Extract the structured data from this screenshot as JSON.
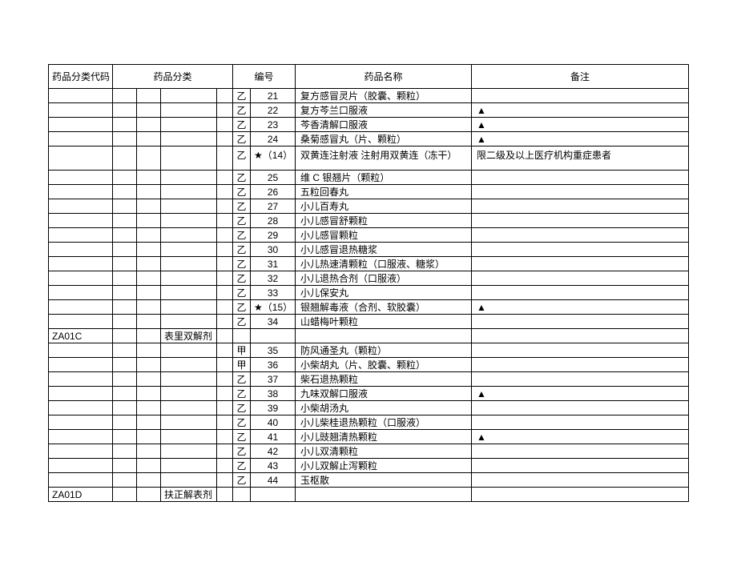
{
  "headers": {
    "code": "药品分类代码",
    "category": "药品分类",
    "number": "编号",
    "drug_name": "药品名称",
    "note": "备注"
  },
  "rows": [
    {
      "code": "",
      "cat3": "",
      "cls": "乙",
      "num": "21",
      "drug": "复方感冒灵片（胶囊、颗粒）",
      "note": ""
    },
    {
      "code": "",
      "cat3": "",
      "cls": "乙",
      "num": "22",
      "drug": "复方芩兰口服液",
      "note": "▲"
    },
    {
      "code": "",
      "cat3": "",
      "cls": "乙",
      "num": "23",
      "drug": "芩香清解口服液",
      "note": "▲"
    },
    {
      "code": "",
      "cat3": "",
      "cls": "乙",
      "num": "24",
      "drug": "桑菊感冒丸（片、颗粒）",
      "note": "▲"
    },
    {
      "code": "",
      "cat3": "",
      "cls": "乙",
      "num": "★（14）",
      "drug": "双黄连注射液 注射用双黄连（冻干）",
      "note": "限二级及以上医疗机构重症患者",
      "tall": true
    },
    {
      "code": "",
      "cat3": "",
      "cls": "乙",
      "num": "25",
      "drug": "维 C 银翘片（颗粒）",
      "note": ""
    },
    {
      "code": "",
      "cat3": "",
      "cls": "乙",
      "num": "26",
      "drug": "五粒回春丸",
      "note": ""
    },
    {
      "code": "",
      "cat3": "",
      "cls": "乙",
      "num": "27",
      "drug": "小儿百寿丸",
      "note": ""
    },
    {
      "code": "",
      "cat3": "",
      "cls": "乙",
      "num": "28",
      "drug": "小儿感冒舒颗粒",
      "note": ""
    },
    {
      "code": "",
      "cat3": "",
      "cls": "乙",
      "num": "29",
      "drug": "小儿感冒颗粒",
      "note": ""
    },
    {
      "code": "",
      "cat3": "",
      "cls": "乙",
      "num": "30",
      "drug": "小儿感冒退热糖浆",
      "note": ""
    },
    {
      "code": "",
      "cat3": "",
      "cls": "乙",
      "num": "31",
      "drug": "小儿热速清颗粒（口服液、糖浆）",
      "note": ""
    },
    {
      "code": "",
      "cat3": "",
      "cls": "乙",
      "num": "32",
      "drug": "小儿退热合剂（口服液）",
      "note": ""
    },
    {
      "code": "",
      "cat3": "",
      "cls": "乙",
      "num": "33",
      "drug": "小儿保安丸",
      "note": ""
    },
    {
      "code": "",
      "cat3": "",
      "cls": "乙",
      "num": "★（15）",
      "drug": "银翘解毒液（合剂、软胶囊）",
      "note": "▲"
    },
    {
      "code": "",
      "cat3": "",
      "cls": "乙",
      "num": "34",
      "drug": "山蜡梅叶颗粒",
      "note": ""
    },
    {
      "code": "ZA01C",
      "cat3": "表里双解剂",
      "cls": "",
      "num": "",
      "drug": "",
      "note": ""
    },
    {
      "code": "",
      "cat3": "",
      "cls": "甲",
      "num": "35",
      "drug": "防风通圣丸（颗粒）",
      "note": ""
    },
    {
      "code": "",
      "cat3": "",
      "cls": "甲",
      "num": "36",
      "drug": "小柴胡丸（片、胶囊、颗粒）",
      "note": ""
    },
    {
      "code": "",
      "cat3": "",
      "cls": "乙",
      "num": "37",
      "drug": "柴石退热颗粒",
      "note": ""
    },
    {
      "code": "",
      "cat3": "",
      "cls": "乙",
      "num": "38",
      "drug": "九味双解口服液",
      "note": "▲"
    },
    {
      "code": "",
      "cat3": "",
      "cls": "乙",
      "num": "39",
      "drug": "小柴胡汤丸",
      "note": ""
    },
    {
      "code": "",
      "cat3": "",
      "cls": "乙",
      "num": "40",
      "drug": "小儿柴桂退热颗粒（口服液）",
      "note": ""
    },
    {
      "code": "",
      "cat3": "",
      "cls": "乙",
      "num": "41",
      "drug": "小儿豉翘清热颗粒",
      "note": "▲"
    },
    {
      "code": "",
      "cat3": "",
      "cls": "乙",
      "num": "42",
      "drug": "小儿双清颗粒",
      "note": ""
    },
    {
      "code": "",
      "cat3": "",
      "cls": "乙",
      "num": "43",
      "drug": "小儿双解止泻颗粒",
      "note": ""
    },
    {
      "code": "",
      "cat3": "",
      "cls": "乙",
      "num": "44",
      "drug": "玉枢散",
      "note": ""
    },
    {
      "code": "ZA01D",
      "cat3": "扶正解表剂",
      "cls": "",
      "num": "",
      "drug": "",
      "note": ""
    }
  ]
}
